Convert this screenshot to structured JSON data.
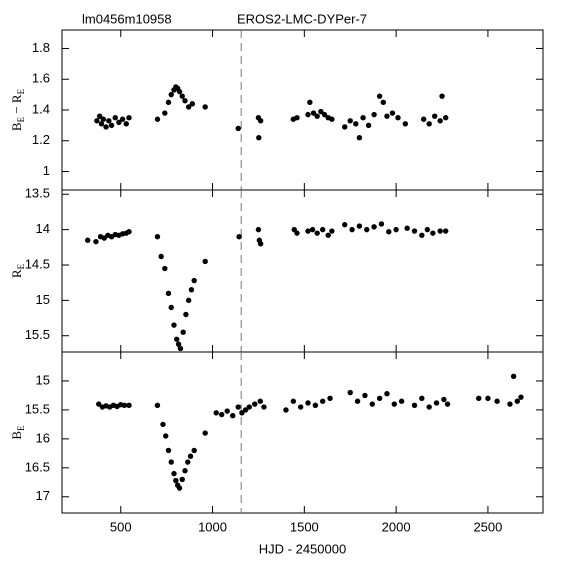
{
  "header": {
    "left": "lm0456m10958",
    "right": "EROS2-LMC-DYPer-7"
  },
  "chart_data": [
    {
      "type": "scatter",
      "color": "#000000",
      "ylabel_parts": [
        "B",
        "E",
        " − R",
        "E"
      ],
      "xlim": [
        180,
        2800
      ],
      "ylim": [
        0.88,
        1.92
      ],
      "yticks": [
        1,
        1.2,
        1.4,
        1.6,
        1.8
      ],
      "vline": 1156,
      "x": [
        370,
        385,
        395,
        405,
        420,
        435,
        450,
        470,
        490,
        510,
        530,
        545,
        700,
        740,
        760,
        775,
        790,
        800,
        810,
        820,
        835,
        850,
        870,
        890,
        960,
        1140,
        1250,
        1252,
        1262,
        1440,
        1460,
        1520,
        1530,
        1550,
        1570,
        1590,
        1610,
        1630,
        1650,
        1720,
        1750,
        1780,
        1800,
        1820,
        1850,
        1880,
        1910,
        1930,
        1950,
        1980,
        2010,
        2050,
        2150,
        2180,
        2210,
        2240,
        2250,
        2270
      ],
      "y": [
        1.33,
        1.36,
        1.31,
        1.34,
        1.29,
        1.33,
        1.3,
        1.35,
        1.32,
        1.34,
        1.31,
        1.35,
        1.34,
        1.38,
        1.45,
        1.5,
        1.53,
        1.55,
        1.54,
        1.52,
        1.49,
        1.46,
        1.42,
        1.44,
        1.42,
        1.28,
        1.35,
        1.22,
        1.33,
        1.34,
        1.35,
        1.37,
        1.45,
        1.38,
        1.36,
        1.39,
        1.37,
        1.35,
        1.34,
        1.29,
        1.33,
        1.31,
        1.22,
        1.35,
        1.3,
        1.37,
        1.49,
        1.45,
        1.36,
        1.38,
        1.35,
        1.31,
        1.34,
        1.31,
        1.36,
        1.33,
        1.49,
        1.35
      ]
    },
    {
      "type": "scatter",
      "color": "#000000",
      "ylabel_parts": [
        "R",
        "E"
      ],
      "xlim": [
        180,
        2800
      ],
      "ylim": [
        15.73,
        13.44
      ],
      "yticks": [
        13.5,
        14,
        14.5,
        15,
        15.5
      ],
      "vline": 1156,
      "x": [
        320,
        365,
        390,
        410,
        430,
        450,
        470,
        490,
        510,
        530,
        545,
        700,
        720,
        740,
        760,
        775,
        790,
        805,
        815,
        825,
        840,
        855,
        870,
        885,
        900,
        960,
        1145,
        1250,
        1255,
        1262,
        1445,
        1460,
        1520,
        1545,
        1570,
        1600,
        1630,
        1650,
        1720,
        1760,
        1800,
        1840,
        1880,
        1920,
        1960,
        2000,
        2060,
        2100,
        2140,
        2170,
        2200,
        2240,
        2270
      ],
      "y": [
        14.15,
        14.17,
        14.1,
        14.12,
        14.08,
        14.1,
        14.07,
        14.08,
        14.06,
        14.05,
        14.03,
        14.1,
        14.38,
        14.55,
        14.9,
        15.1,
        15.35,
        15.55,
        15.62,
        15.68,
        15.45,
        15.2,
        15.0,
        14.85,
        14.72,
        14.45,
        14.1,
        14.0,
        14.15,
        14.2,
        14.0,
        14.05,
        14.02,
        14.0,
        14.05,
        14.0,
        14.08,
        14.02,
        13.93,
        14.0,
        13.95,
        14.0,
        13.96,
        13.92,
        14.03,
        14.0,
        13.98,
        14.02,
        14.08,
        14.0,
        14.05,
        14.02,
        14.02
      ]
    },
    {
      "type": "scatter",
      "color": "#000000",
      "ylabel_parts": [
        "B",
        "E"
      ],
      "xlabel": "HJD - 2450000",
      "xlim": [
        180,
        2800
      ],
      "ylim": [
        17.28,
        14.5
      ],
      "yticks": [
        15,
        15.5,
        16,
        16.5,
        17
      ],
      "xticks": [
        500,
        1000,
        1500,
        2000,
        2500
      ],
      "vline": 1156,
      "x": [
        380,
        400,
        420,
        440,
        460,
        480,
        500,
        520,
        545,
        700,
        730,
        745,
        760,
        775,
        790,
        800,
        810,
        820,
        835,
        850,
        865,
        880,
        900,
        960,
        1020,
        1050,
        1080,
        1110,
        1140,
        1160,
        1180,
        1200,
        1230,
        1260,
        1280,
        1400,
        1440,
        1480,
        1520,
        1560,
        1600,
        1640,
        1750,
        1790,
        1830,
        1870,
        1910,
        1950,
        1990,
        2030,
        2100,
        2140,
        2180,
        2220,
        2260,
        2280,
        2450,
        2500,
        2550,
        2620,
        2640,
        2660,
        2680
      ],
      "y": [
        15.4,
        15.45,
        15.43,
        15.45,
        15.42,
        15.44,
        15.41,
        15.42,
        15.42,
        15.42,
        15.75,
        15.95,
        16.2,
        16.4,
        16.6,
        16.72,
        16.8,
        16.85,
        16.7,
        16.55,
        16.4,
        16.3,
        16.2,
        15.9,
        15.55,
        15.58,
        15.52,
        15.6,
        15.45,
        15.55,
        15.5,
        15.45,
        15.4,
        15.35,
        15.45,
        15.5,
        15.35,
        15.45,
        15.38,
        15.42,
        15.35,
        15.3,
        15.2,
        15.35,
        15.25,
        15.4,
        15.3,
        15.22,
        15.4,
        15.35,
        15.42,
        15.3,
        15.45,
        15.38,
        15.32,
        15.4,
        15.3,
        15.3,
        15.35,
        15.4,
        14.92,
        15.35,
        15.28
      ]
    }
  ]
}
